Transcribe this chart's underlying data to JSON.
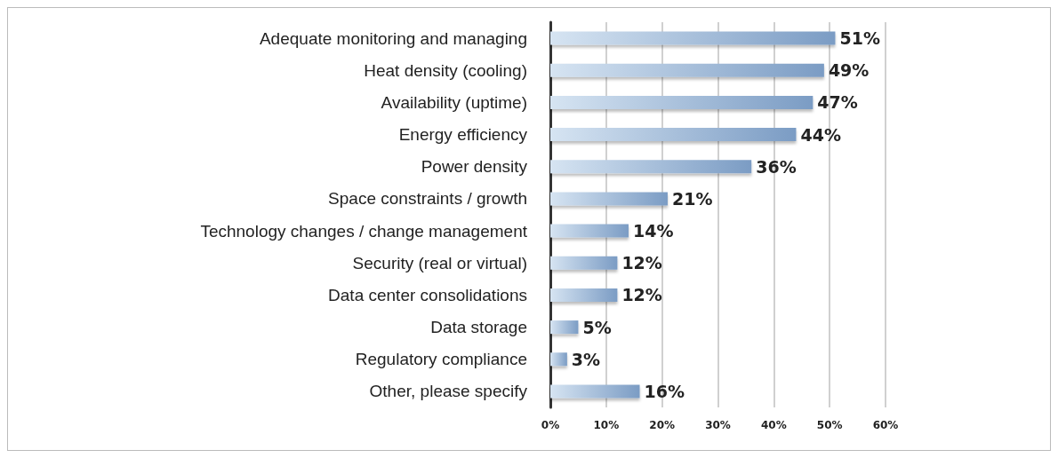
{
  "chart_data": {
    "type": "bar",
    "orientation": "horizontal",
    "categories": [
      "Adequate monitoring and managing",
      "Heat density (cooling)",
      "Availability (uptime)",
      "Energy efficiency",
      "Power density",
      "Space constraints / growth",
      "Technology changes / change management",
      "Security (real or virtual)",
      "Data center consolidations",
      "Data storage",
      "Regulatory compliance",
      "Other, please specify"
    ],
    "values": [
      51,
      49,
      47,
      44,
      36,
      21,
      14,
      12,
      12,
      5,
      3,
      16
    ],
    "value_labels": [
      "51%",
      "49%",
      "47%",
      "44%",
      "36%",
      "21%",
      "14%",
      "12%",
      "12%",
      "5%",
      "3%",
      "16%"
    ],
    "color": "#7b9cc4",
    "xlim": [
      0,
      60
    ],
    "xticks": [
      {
        "value": 0,
        "label": "0%"
      },
      {
        "value": 10,
        "label": "10%"
      },
      {
        "value": 20,
        "label": "20%"
      },
      {
        "value": 30,
        "label": "30%"
      },
      {
        "value": 40,
        "label": "40%"
      },
      {
        "value": 50,
        "label": "50%"
      },
      {
        "value": 60,
        "label": "60%"
      }
    ],
    "grid": "x"
  }
}
